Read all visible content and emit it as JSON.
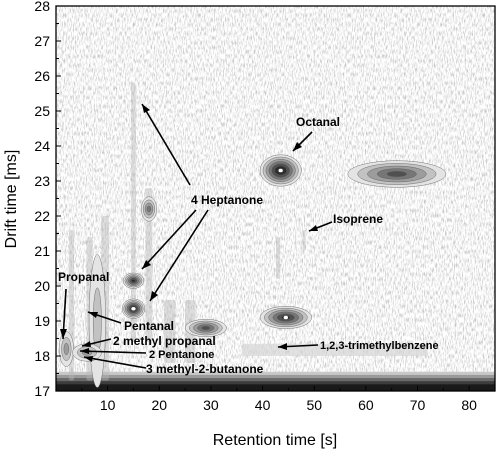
{
  "chart_data": {
    "type": "heatmap",
    "subtype": "contour",
    "xlabel": "Retention time [s]",
    "ylabel": "Drift time [ms]",
    "xlim": [
      0,
      85
    ],
    "ylim": [
      17,
      28
    ],
    "xticks": [
      10,
      20,
      30,
      40,
      50,
      60,
      70,
      80
    ],
    "yticks": [
      17,
      18,
      19,
      20,
      21,
      22,
      23,
      24,
      25,
      26,
      27,
      28
    ],
    "grid": false,
    "colormap": "grayscale",
    "peaks": [
      {
        "x": 43.5,
        "y": 23.3,
        "intensity": 1.0
      },
      {
        "x": 66.0,
        "y": 23.2,
        "intensity": 0.75
      },
      {
        "x": 44.5,
        "y": 19.1,
        "intensity": 0.9
      },
      {
        "x": 29.0,
        "y": 18.8,
        "intensity": 0.7
      },
      {
        "x": 15.0,
        "y": 19.35,
        "intensity": 0.95
      },
      {
        "x": 15.0,
        "y": 20.15,
        "intensity": 0.8
      },
      {
        "x": 18.0,
        "y": 22.2,
        "intensity": 0.5
      },
      {
        "x": 8.0,
        "y": 19.0,
        "intensity": 0.35
      },
      {
        "x": 2.0,
        "y": 18.2,
        "intensity": 0.4
      },
      {
        "x": 6.0,
        "y": 18.1,
        "intensity": 0.45
      }
    ],
    "annotations": [
      {
        "text": "Octanal",
        "target": [
          43.5,
          23.6
        ]
      },
      {
        "text": "4 Heptanone",
        "targets": [
          [
            14.5,
            25.7
          ],
          [
            14.5,
            20.2
          ],
          [
            14.5,
            19.4
          ]
        ]
      },
      {
        "text": "Isoprene",
        "target": [
          49.0,
          21.5
        ]
      },
      {
        "text": "Propanal",
        "target": [
          2.0,
          18.6
        ]
      },
      {
        "text": "Pentanal",
        "target": [
          5.5,
          19.2
        ]
      },
      {
        "text": "2 methyl propanal",
        "target": [
          4.0,
          18.2
        ]
      },
      {
        "text": "2 Pentanone",
        "target": [
          5.5,
          18.0
        ]
      },
      {
        "text": "3 methyl-2-butanone",
        "target": [
          5.0,
          18.0
        ]
      },
      {
        "text": "1,2,3-trimethylbenzene",
        "target": [
          38.0,
          18.2
        ]
      }
    ]
  }
}
